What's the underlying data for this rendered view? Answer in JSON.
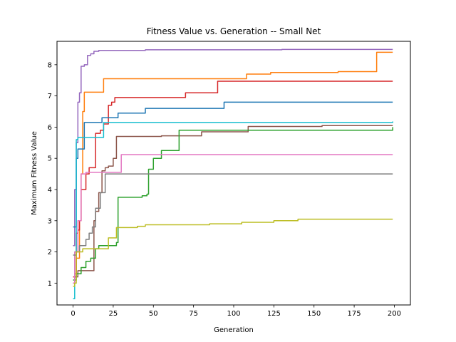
{
  "chart_data": {
    "type": "line",
    "title": "Fitness Value vs. Generation -- Small Net",
    "xlabel": "Generation",
    "ylabel": "Maximum Fitness Value",
    "xlim": [
      -10,
      210
    ],
    "ylim": [
      0.3,
      8.75
    ],
    "xticks": [
      0,
      25,
      50,
      75,
      100,
      125,
      150,
      175,
      200
    ],
    "yticks": [
      1,
      2,
      3,
      4,
      5,
      6,
      7,
      8
    ],
    "grid": false,
    "legend": "none",
    "series": [
      {
        "color": "#9467bd",
        "step": true,
        "points": [
          [
            0,
            2.2
          ],
          [
            1,
            4.0
          ],
          [
            2,
            5.5
          ],
          [
            3,
            6.8
          ],
          [
            4,
            7.1
          ],
          [
            5,
            7.95
          ],
          [
            7,
            8.0
          ],
          [
            9,
            8.3
          ],
          [
            11,
            8.35
          ],
          [
            13,
            8.43
          ],
          [
            16,
            8.46
          ],
          [
            45,
            8.48
          ],
          [
            130,
            8.49
          ],
          [
            199,
            8.49
          ]
        ]
      },
      {
        "color": "#ff7f0e",
        "step": true,
        "points": [
          [
            0,
            1.0
          ],
          [
            1,
            1.3
          ],
          [
            2,
            1.8
          ],
          [
            4,
            3.0
          ],
          [
            5,
            4.5
          ],
          [
            6,
            6.5
          ],
          [
            7,
            7.12
          ],
          [
            19,
            7.55
          ],
          [
            108,
            7.7
          ],
          [
            123,
            7.75
          ],
          [
            165,
            7.78
          ],
          [
            189,
            8.4
          ],
          [
            199,
            8.4
          ]
        ]
      },
      {
        "color": "#d62728",
        "step": true,
        "points": [
          [
            0,
            1.2
          ],
          [
            2,
            2.6
          ],
          [
            3,
            2.7
          ],
          [
            4,
            3.0
          ],
          [
            5,
            4.0
          ],
          [
            8,
            4.5
          ],
          [
            10,
            4.7
          ],
          [
            14,
            5.8
          ],
          [
            17,
            5.9
          ],
          [
            19,
            6.1
          ],
          [
            22,
            6.7
          ],
          [
            24,
            6.8
          ],
          [
            26,
            6.95
          ],
          [
            70,
            7.1
          ],
          [
            90,
            7.47
          ],
          [
            199,
            7.47
          ]
        ]
      },
      {
        "color": "#1f77b4",
        "step": true,
        "points": [
          [
            0,
            2.8
          ],
          [
            2,
            5.0
          ],
          [
            3,
            5.3
          ],
          [
            7,
            6.15
          ],
          [
            18,
            6.3
          ],
          [
            28,
            6.45
          ],
          [
            45,
            6.6
          ],
          [
            94,
            6.8
          ],
          [
            199,
            6.8
          ]
        ]
      },
      {
        "color": "#17becf",
        "step": true,
        "points": [
          [
            0,
            0.5
          ],
          [
            1,
            2.0
          ],
          [
            2,
            5.6
          ],
          [
            3,
            5.67
          ],
          [
            19,
            6.15
          ],
          [
            199,
            6.18
          ]
        ]
      },
      {
        "color": "#8c564b",
        "step": true,
        "points": [
          [
            0,
            1.0
          ],
          [
            1,
            1.2
          ],
          [
            3,
            1.4
          ],
          [
            13,
            3.0
          ],
          [
            14,
            3.3
          ],
          [
            16,
            3.9
          ],
          [
            18,
            4.6
          ],
          [
            20,
            4.7
          ],
          [
            22,
            4.75
          ],
          [
            25,
            5.0
          ],
          [
            27,
            5.7
          ],
          [
            55,
            5.72
          ],
          [
            80,
            5.85
          ],
          [
            109,
            6.02
          ],
          [
            155,
            6.05
          ],
          [
            199,
            6.05
          ]
        ]
      },
      {
        "color": "#2ca02c",
        "step": true,
        "points": [
          [
            0,
            1.1
          ],
          [
            2,
            1.3
          ],
          [
            5,
            1.5
          ],
          [
            8,
            1.7
          ],
          [
            11,
            1.8
          ],
          [
            14,
            2.1
          ],
          [
            16,
            2.2
          ],
          [
            27,
            2.3
          ],
          [
            28,
            3.75
          ],
          [
            43,
            3.8
          ],
          [
            46,
            3.85
          ],
          [
            47,
            4.65
          ],
          [
            50,
            5.0
          ],
          [
            55,
            5.25
          ],
          [
            66,
            5.9
          ],
          [
            199,
            6.0
          ]
        ]
      },
      {
        "color": "#e377c2",
        "step": true,
        "points": [
          [
            0,
            1.0
          ],
          [
            1,
            2.0
          ],
          [
            3,
            3.0
          ],
          [
            5,
            4.5
          ],
          [
            8,
            4.55
          ],
          [
            30,
            5.12
          ],
          [
            199,
            5.12
          ]
        ]
      },
      {
        "color": "#7f7f7f",
        "step": true,
        "points": [
          [
            0,
            1.9
          ],
          [
            2,
            2.0
          ],
          [
            4,
            2.2
          ],
          [
            8,
            2.4
          ],
          [
            10,
            2.6
          ],
          [
            12,
            2.8
          ],
          [
            14,
            3.4
          ],
          [
            17,
            3.9
          ],
          [
            20,
            4.5
          ],
          [
            199,
            4.5
          ]
        ]
      },
      {
        "color": "#bcbd22",
        "step": true,
        "points": [
          [
            0,
            0.9
          ],
          [
            1,
            1.0
          ],
          [
            2,
            2.0
          ],
          [
            6,
            2.1
          ],
          [
            22,
            2.45
          ],
          [
            27,
            2.78
          ],
          [
            40,
            2.82
          ],
          [
            45,
            2.87
          ],
          [
            85,
            2.9
          ],
          [
            105,
            2.95
          ],
          [
            125,
            3.0
          ],
          [
            140,
            3.05
          ],
          [
            199,
            3.05
          ]
        ]
      }
    ]
  }
}
